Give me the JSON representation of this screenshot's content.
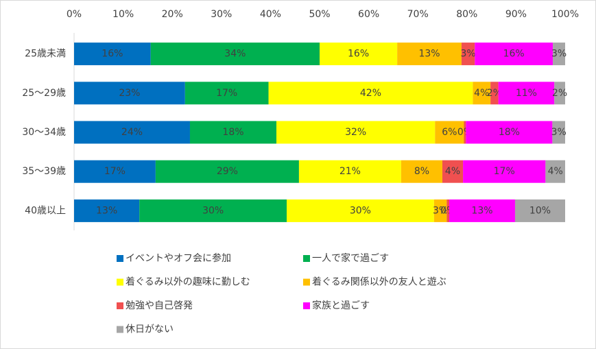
{
  "chart_data": {
    "type": "stacked-barh",
    "categories": [
      "25歳未満",
      "25～29歳",
      "30～34歳",
      "35～39歳",
      "40歳以上"
    ],
    "xlim": [
      0,
      100
    ],
    "xticks": [
      {
        "value": 0,
        "label": "0%"
      },
      {
        "value": 10,
        "label": "10%"
      },
      {
        "value": 20,
        "label": "20%"
      },
      {
        "value": 30,
        "label": "30%"
      },
      {
        "value": 40,
        "label": "40%"
      },
      {
        "value": 50,
        "label": "50%"
      },
      {
        "value": 60,
        "label": "60%"
      },
      {
        "value": 70,
        "label": "70%"
      },
      {
        "value": 80,
        "label": "80%"
      },
      {
        "value": 90,
        "label": "90%"
      },
      {
        "value": 100,
        "label": "100%"
      }
    ],
    "series": [
      {
        "name": "イベントやオフ会に参加",
        "color": "#0070c0",
        "values": [
          15.6,
          22.6,
          23.6,
          16.6,
          13.3
        ],
        "value_labels": [
          "16%",
          "23%",
          "24%",
          "17%",
          "13%"
        ]
      },
      {
        "name": "一人で家で過ごす",
        "color": "#00b050",
        "values": [
          34.4,
          17.0,
          17.6,
          29.2,
          30.0
        ],
        "value_labels": [
          "34%",
          "17%",
          "18%",
          "29%",
          "30%"
        ]
      },
      {
        "name": "着ぐるみ以外の趣味に勤しむ",
        "color": "#ffff00",
        "values": [
          15.8,
          41.6,
          32.3,
          20.8,
          30.0
        ],
        "value_labels": [
          "16%",
          "42%",
          "32%",
          "21%",
          "30%"
        ]
      },
      {
        "name": "着ぐるみ関係以外の友人と遊ぶ",
        "color": "#ffc000",
        "values": [
          13.1,
          3.6,
          5.9,
          8.4,
          2.6
        ],
        "value_labels": [
          "13%",
          "4%",
          "6%",
          "8%",
          "3%"
        ]
      },
      {
        "name": "勉強や自己啓発",
        "color": "#f05050",
        "values": [
          2.7,
          1.6,
          0.4,
          4.2,
          0.5
        ],
        "value_labels": [
          "3%",
          "2%",
          "0%",
          "4%",
          "0%"
        ]
      },
      {
        "name": "家族と過ごす",
        "color": "#ff00ff",
        "values": [
          15.9,
          11.4,
          17.6,
          16.8,
          13.4
        ],
        "value_labels": [
          "16%",
          "11%",
          "18%",
          "17%",
          "13%"
        ]
      },
      {
        "name": "休日がない",
        "color": "#a6a6a6",
        "values": [
          2.5,
          2.2,
          2.6,
          4.0,
          10.2
        ],
        "value_labels": [
          "3%",
          "2%",
          "3%",
          "4%",
          "10%"
        ]
      }
    ]
  }
}
